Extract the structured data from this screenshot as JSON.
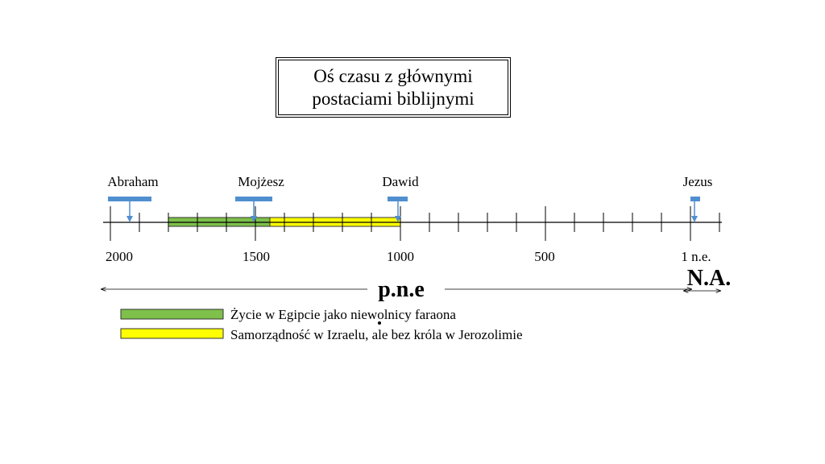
{
  "title": "Oś czasu z głównymi postaciami biblijnymi",
  "colors": {
    "green_band": "#7ec04a",
    "yellow_band": "#ffff00",
    "marker": "#4f8fcf",
    "axis": "#000000"
  },
  "timeline": {
    "tick_labels": [
      "2000",
      "1500",
      "1000",
      "500",
      "1 n.e."
    ],
    "era_bce_label": "p.n.e",
    "era_ce_label": "N.A.",
    "figures": [
      {
        "name": "Abraham",
        "year": -2000
      },
      {
        "name": "Mojżesz",
        "year": -1500
      },
      {
        "name": "Dawid",
        "year": -1000
      },
      {
        "name": "Jezus",
        "year": 1
      }
    ],
    "periods": [
      {
        "id": "egypt",
        "start": -1800,
        "end": -1450,
        "color": "#7ec04a"
      },
      {
        "id": "judges",
        "start": -1450,
        "end": -1000,
        "color": "#ffff00"
      }
    ]
  },
  "legend": [
    {
      "color": "#7ec04a",
      "label": "Życie w Egipcie jako niewolnicy faraona"
    },
    {
      "color": "#ffff00",
      "label": "Samorządność w Izraelu, ale bez króla w Jerozolimie"
    }
  ]
}
